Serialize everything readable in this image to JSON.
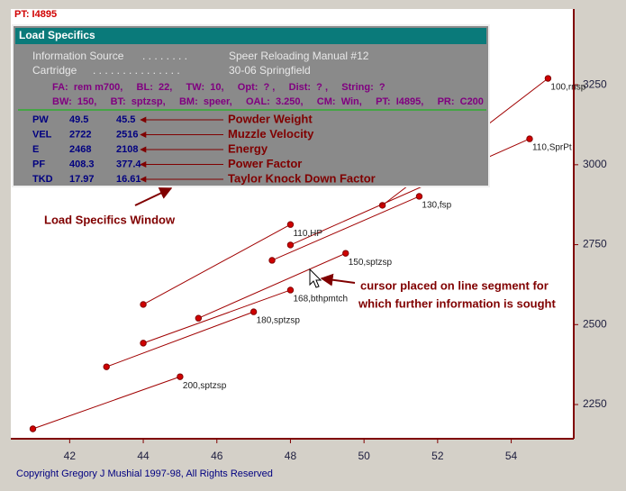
{
  "header": {
    "pt": "PT:  I4895"
  },
  "window": {
    "title": "Load Specifics",
    "info": [
      {
        "label": "Information Source",
        "dots": ". . . . . . . .",
        "value": "Speer Reloading Manual #12"
      },
      {
        "label": "Cartridge",
        "dots": ". . . . . . . . . . . . . . .",
        "value": "30-06 Springfield"
      }
    ],
    "details": [
      "FA:  rem m700,     BL:  22,     TW:  10,     Opt:  ? ,     Dist:  ? ,     String:  ?",
      "BW:  150,     BT:  sptzsp,     BM:  speer,     OAL:  3.250,     CM:  Win,     PT:  I4895,     PR:  C200"
    ],
    "table": [
      [
        "PW",
        "49.5",
        "45.5"
      ],
      [
        "VEL",
        "2722",
        "2516"
      ],
      [
        "E",
        "2468",
        "2108"
      ],
      [
        "PF",
        "408.3",
        "377.4"
      ],
      [
        "TKD",
        "17.97",
        "16.61"
      ]
    ],
    "table_labels": [
      "Powder Weight",
      "Muzzle Velocity",
      "Energy",
      "Power Factor",
      "Taylor Knock Down Factor"
    ]
  },
  "annotations": [
    "Load Specifics Window",
    "cursor placed on line segment for",
    "which further information is sought"
  ],
  "copyright": "Copyright Gregory J Mushial 1997-98, All Rights Reserved",
  "chart_data": {
    "type": "line",
    "xlim": [
      40.4,
      55.7
    ],
    "ylim": [
      2143,
      3487
    ],
    "xticks": [
      42,
      44,
      46,
      48,
      50,
      52,
      54
    ],
    "yticks": [
      2250,
      2500,
      2750,
      3000,
      3250
    ],
    "grid": false,
    "color": "#a00000",
    "series": [
      {
        "name": "100,rnsp",
        "x": [
          50.5,
          55.0
        ],
        "values": [
          2873,
          3270
        ]
      },
      {
        "name": "110,SprPt",
        "x": [
          48.0,
          54.5
        ],
        "values": [
          2749,
          3081
        ]
      },
      {
        "name": "130,fsp",
        "x": [
          47.5,
          51.5
        ],
        "values": [
          2701,
          2901
        ]
      },
      {
        "name": "110,HP",
        "x": [
          44.0,
          48.0
        ],
        "values": [
          2563,
          2813
        ]
      },
      {
        "name": "150,sptzsp",
        "x": [
          45.5,
          49.5
        ],
        "values": [
          2520,
          2723
        ]
      },
      {
        "name": "168,bthpmtch",
        "x": [
          44.0,
          48.0
        ],
        "values": [
          2442,
          2608
        ]
      },
      {
        "name": "180,sptzsp",
        "x": [
          43.0,
          47.0
        ],
        "values": [
          2368,
          2540
        ]
      },
      {
        "name": "200,sptzsp",
        "x": [
          41.0,
          45.0
        ],
        "values": [
          2174,
          2337
        ]
      }
    ]
  }
}
